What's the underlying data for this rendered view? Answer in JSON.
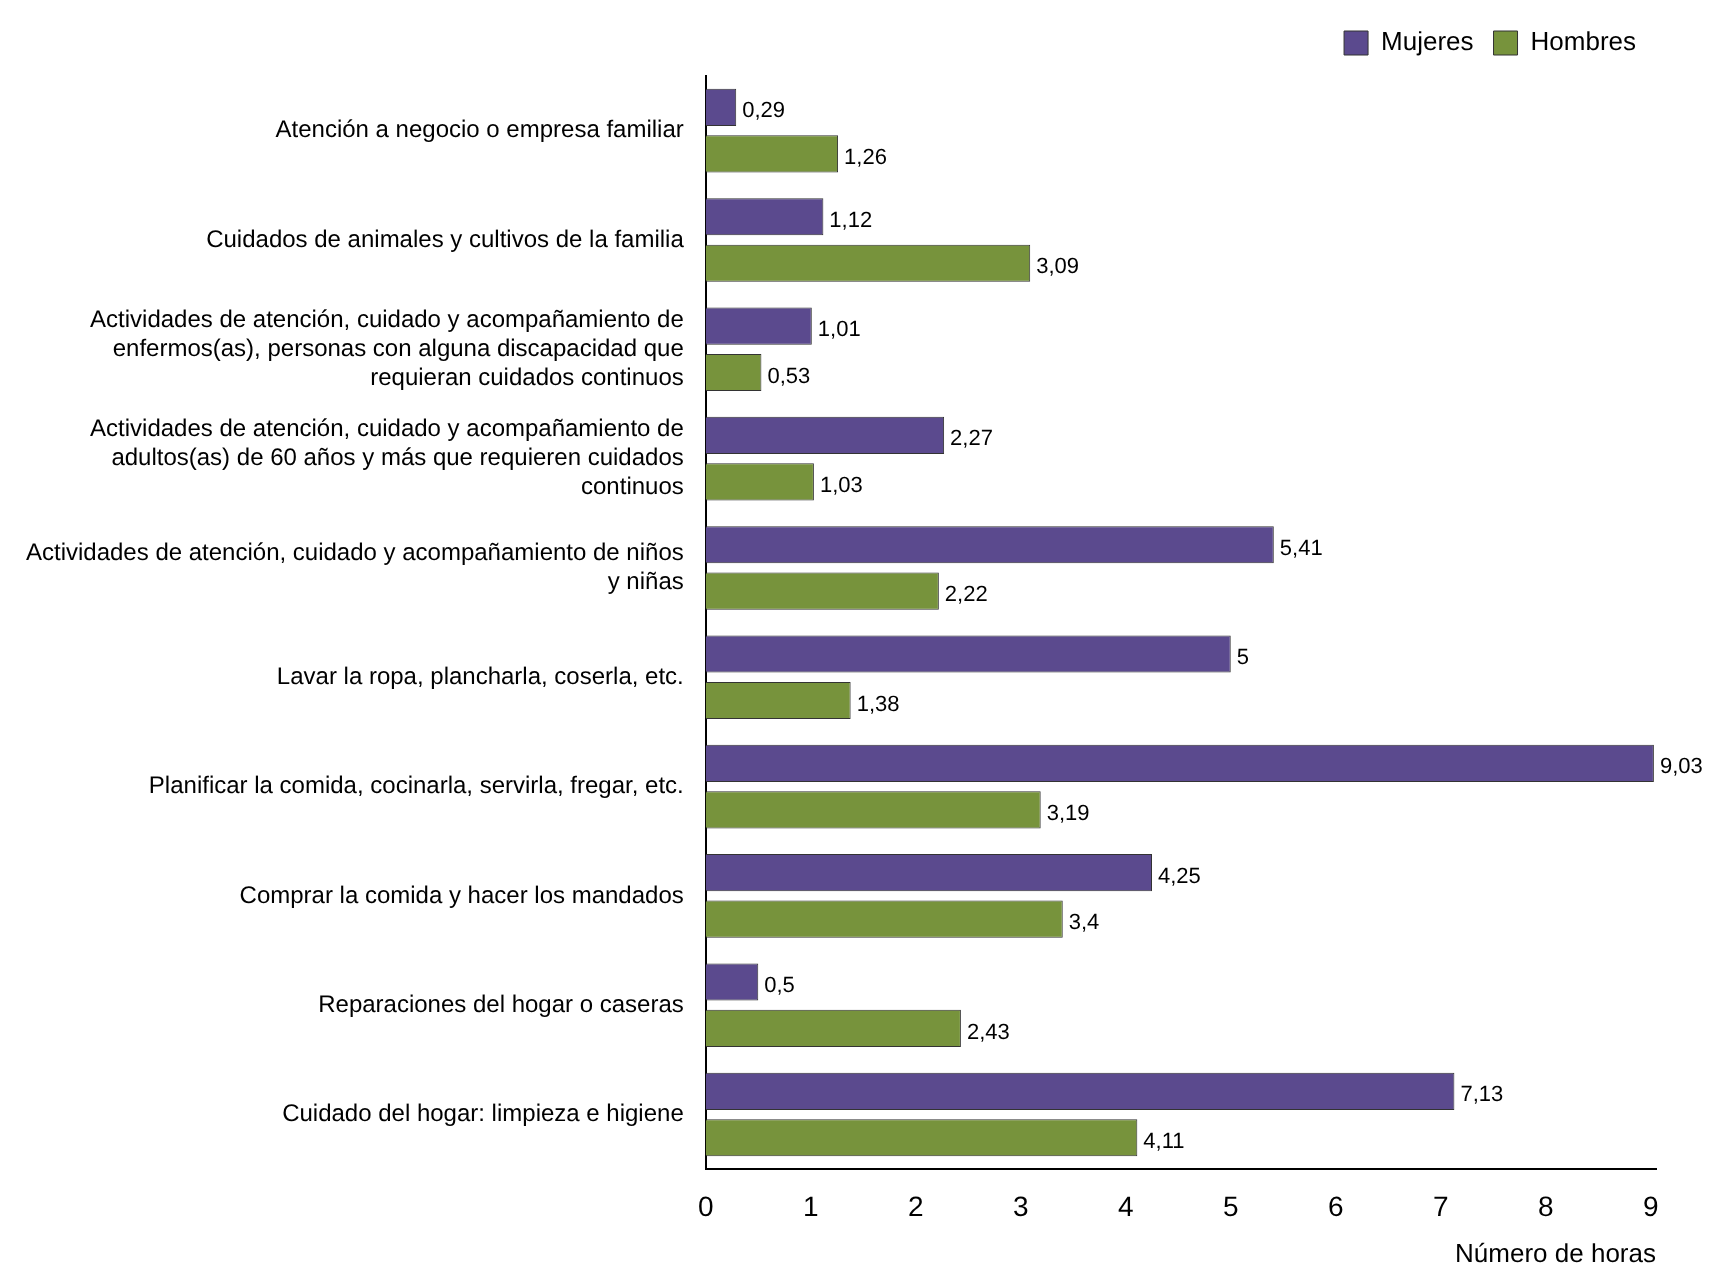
{
  "chart_data": {
    "type": "bar",
    "orientation": "horizontal",
    "xlabel": "Número de horas",
    "categories": [
      "Atención a negocio o empresa familiar",
      "Cuidados de animales y cultivos de la familia",
      "Actividades de atención, cuidado y acompañamiento de enfermos(as), personas con alguna discapacidad que requieran cuidados continuos",
      "Actividades de atención, cuidado y acompañamiento de adultos(as) de 60 años y más que requieren cuidados continuos",
      "Actividades de atención, cuidado y acompañamiento de niños y niñas",
      "Lavar la ropa, plancharla, coserla, etc.",
      "Planificar la comida, cocinarla, servirla, fregar, etc.",
      "Comprar la comida y hacer los mandados",
      "Reparaciones del hogar o caseras",
      "Cuidado del hogar: limpieza e higiene"
    ],
    "series": [
      {
        "name": "Mujeres",
        "color": "#5b4a8e",
        "values": [
          0.29,
          1.12,
          1.01,
          2.27,
          5.41,
          5,
          9.03,
          4.25,
          0.5,
          7.13
        ],
        "value_labels": [
          "0,29",
          "1,12",
          "1,01",
          "2,27",
          "5,41",
          "5",
          "9,03",
          "4,25",
          "0,5",
          "7,13"
        ]
      },
      {
        "name": "Hombres",
        "color": "#77933c",
        "values": [
          1.26,
          3.09,
          0.53,
          1.03,
          2.22,
          1.38,
          3.19,
          3.4,
          2.43,
          4.11
        ],
        "value_labels": [
          "1,26",
          "3,09",
          "0,53",
          "1,03",
          "2,22",
          "1,38",
          "3,19",
          "3,4",
          "2,43",
          "4,11"
        ]
      }
    ],
    "xlim": [
      0,
      9.05
    ],
    "xticks": [
      0,
      1,
      2,
      3,
      4,
      5,
      6,
      7,
      8,
      9
    ],
    "grid": false,
    "legend": "top right"
  }
}
